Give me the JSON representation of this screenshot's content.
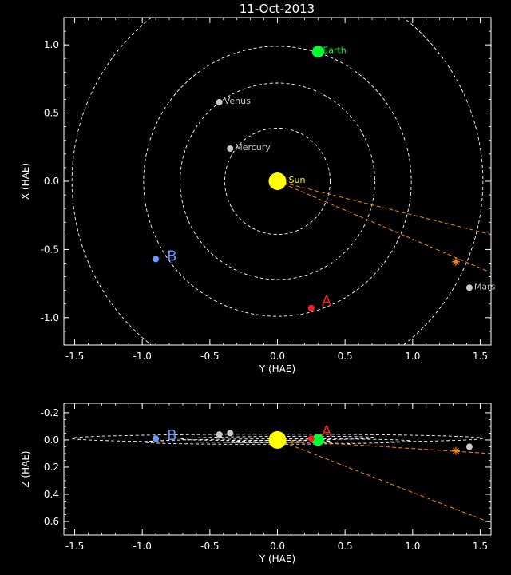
{
  "chart_data": [
    {
      "type": "scatter",
      "title": "11-Oct-2013",
      "xlabel": "Y (HAE)",
      "ylabel": "X (HAE)",
      "xlim": [
        -1.58,
        1.58
      ],
      "ylim": [
        1.2,
        -1.2
      ],
      "xticks": [
        "-1.5",
        "-1.0",
        "-0.5",
        "0.0",
        "0.5",
        "1.0",
        "1.5"
      ],
      "xtick_values": [
        -1.5,
        -1.0,
        -0.5,
        0.0,
        0.5,
        1.0,
        1.5
      ],
      "yticks": [
        "-1.0",
        "-0.5",
        "0.0",
        "0.5",
        "1.0"
      ],
      "ytick_values": [
        -1.0,
        -0.5,
        0.0,
        0.5,
        1.0
      ],
      "orbits_radius": [
        0.39,
        0.72,
        0.99,
        1.52
      ],
      "bodies": [
        {
          "label": "Sun",
          "y": 0.0,
          "x": 0.0,
          "color": "#ffff00"
        },
        {
          "label": "Mercury",
          "y": -0.35,
          "x": 0.24,
          "color": "#c8c8c8"
        },
        {
          "label": "Venus",
          "y": -0.43,
          "x": 0.58,
          "color": "#c8c8c8"
        },
        {
          "label": "Earth",
          "y": 0.3,
          "x": 0.95,
          "color": "#00ff33"
        },
        {
          "label": "Mars",
          "y": 1.42,
          "x": -0.78,
          "color": "#c8c8c8"
        },
        {
          "label": "A",
          "y": 0.25,
          "x": -0.93,
          "color": "#ff2020"
        },
        {
          "label": "B",
          "y": -0.9,
          "x": -0.57,
          "color": "#6699ff"
        }
      ],
      "star": {
        "y": 1.32,
        "x": -0.59,
        "color": "#ff8800"
      },
      "rays": [
        {
          "from": [
            0.0,
            0.0
          ],
          "to": [
            1.58,
            -0.67
          ]
        },
        {
          "from": [
            0.0,
            0.0
          ],
          "to": [
            1.58,
            -0.39
          ]
        }
      ]
    },
    {
      "type": "scatter",
      "xlabel": "Y (HAE)",
      "ylabel": "Z (HAE)",
      "xlim": [
        -1.58,
        1.58
      ],
      "ylim": [
        -0.27,
        0.7
      ],
      "xticks": [
        "-1.5",
        "-1.0",
        "-0.5",
        "0.0",
        "0.5",
        "1.0",
        "1.5"
      ],
      "xtick_values": [
        -1.5,
        -1.0,
        -0.5,
        0.0,
        0.5,
        1.0,
        1.5
      ],
      "yticks": [
        "-0.2",
        "0.0",
        "0.2",
        "0.4",
        "0.6"
      ],
      "ytick_values": [
        -0.2,
        0.0,
        0.2,
        0.4,
        0.6
      ],
      "bodies": [
        {
          "label": "Sun",
          "y": 0.0,
          "z": 0.0,
          "color": "#ffff00"
        },
        {
          "label": "Mercury",
          "y": -0.35,
          "z": -0.05,
          "color": "#c8c8c8"
        },
        {
          "label": "Venus",
          "y": -0.43,
          "z": -0.04,
          "color": "#c8c8c8"
        },
        {
          "label": "Earth",
          "y": 0.3,
          "z": 0.0,
          "color": "#00ff33"
        },
        {
          "label": "Mars",
          "y": 1.42,
          "z": 0.05,
          "color": "#c8c8c8"
        },
        {
          "label": "A",
          "y": 0.25,
          "z": -0.01,
          "color": "#ff2020"
        },
        {
          "label": "B",
          "y": -0.9,
          "z": -0.01,
          "color": "#6699ff"
        }
      ],
      "star": {
        "y": 1.32,
        "z": 0.08,
        "color": "#ff8800"
      },
      "rays": [
        {
          "from": [
            0.0,
            0.0
          ],
          "to": [
            1.58,
            0.61
          ]
        },
        {
          "from": [
            0.0,
            0.0
          ],
          "to": [
            1.58,
            0.1
          ]
        }
      ]
    }
  ]
}
